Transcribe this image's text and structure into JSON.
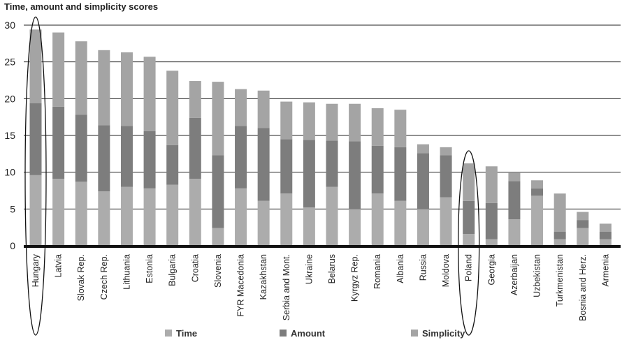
{
  "chart_data": {
    "type": "bar",
    "stacked": true,
    "title": "Time, amount and simplicity scores",
    "ylim": [
      0,
      30
    ],
    "yticks": [
      0,
      5,
      10,
      15,
      20,
      25,
      30
    ],
    "grid": true,
    "legend_position": "bottom",
    "categories": [
      "Hungary",
      "Latvia",
      "Slovak Rep.",
      "Czech Rep.",
      "Lithuania",
      "Estonia",
      "Bulgaria",
      "Croatia",
      "Slovenia",
      "FYR Macedonia",
      "Kazakhstan",
      "Serbia and Mont.",
      "Ukraine",
      "Belarus",
      "Kyrgyz Rep.",
      "Romania",
      "Albania",
      "Russia",
      "Moldova",
      "Poland",
      "Georgia",
      "Azerbaijan",
      "Uzbekistan",
      "Turkmenistan",
      "Bosnia and Herz.",
      "Armenia"
    ],
    "series": [
      {
        "name": "Time",
        "color": "#acacac",
        "values": [
          9.6,
          9.1,
          8.7,
          7.4,
          8.0,
          7.8,
          8.3,
          9.1,
          2.4,
          7.8,
          6.1,
          7.1,
          5.2,
          8.0,
          5.0,
          7.1,
          6.1,
          5.0,
          6.6,
          1.6,
          0.9,
          3.6,
          6.8,
          0.9,
          2.4,
          0.9
        ]
      },
      {
        "name": "Amount",
        "color": "#7d7d7d",
        "values": [
          9.8,
          9.8,
          9.1,
          9.0,
          8.3,
          7.8,
          5.4,
          8.3,
          9.9,
          8.5,
          9.9,
          7.4,
          9.2,
          6.3,
          9.2,
          6.5,
          7.3,
          7.6,
          5.7,
          4.5,
          4.9,
          5.2,
          1.0,
          1.0,
          1.1,
          1.0
        ]
      },
      {
        "name": "Simplicity",
        "color": "#a4a4a4",
        "values": [
          10.0,
          10.1,
          10.0,
          10.2,
          10.0,
          10.1,
          10.1,
          5.0,
          10.0,
          5.0,
          5.1,
          5.1,
          5.1,
          5.0,
          5.1,
          5.1,
          5.1,
          1.2,
          1.1,
          5.1,
          5.0,
          1.1,
          1.1,
          5.2,
          1.1,
          1.1
        ]
      }
    ],
    "highlighted": [
      "Hungary",
      "Poland"
    ]
  }
}
